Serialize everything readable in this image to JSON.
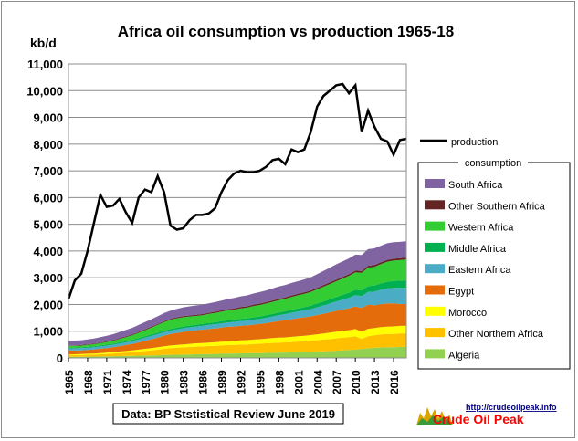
{
  "chart_data": {
    "type": "area",
    "title": "Africa oil consumption vs production 1965-18",
    "ylabel": "kb/d",
    "ylim": [
      0,
      11000
    ],
    "xlim": [
      1965,
      2018
    ],
    "grid": "horizontal",
    "legend_placement": "right",
    "y_ticks": [
      "0",
      "1,000",
      "2,000",
      "3,000",
      "4,000",
      "5,000",
      "6,000",
      "7,000",
      "8,000",
      "9,000",
      "10,000",
      "11,000"
    ],
    "x_ticks": [
      "1965",
      "1968",
      "1971",
      "1974",
      "1977",
      "1980",
      "1983",
      "1986",
      "1989",
      "1992",
      "1995",
      "1998",
      "2001",
      "2004",
      "2007",
      "2010",
      "2013",
      "2016"
    ],
    "years": [
      1965,
      1966,
      1967,
      1968,
      1969,
      1970,
      1971,
      1972,
      1973,
      1974,
      1975,
      1976,
      1977,
      1978,
      1979,
      1980,
      1981,
      1982,
      1983,
      1984,
      1985,
      1986,
      1987,
      1988,
      1989,
      1990,
      1991,
      1992,
      1993,
      1994,
      1995,
      1996,
      1997,
      1998,
      1999,
      2000,
      2001,
      2002,
      2003,
      2004,
      2005,
      2006,
      2007,
      2008,
      2009,
      2010,
      2011,
      2012,
      2013,
      2014,
      2015,
      2016,
      2017,
      2018
    ],
    "production": {
      "name": "production",
      "color": "#000000",
      "values": [
        2200,
        2900,
        3150,
        4000,
        5050,
        6100,
        5650,
        5700,
        5950,
        5450,
        5050,
        6000,
        6300,
        6200,
        6800,
        6200,
        4950,
        4800,
        4850,
        5150,
        5350,
        5350,
        5400,
        5600,
        6200,
        6650,
        6900,
        7000,
        6950,
        6950,
        7000,
        7150,
        7400,
        7450,
        7250,
        7800,
        7700,
        7800,
        8450,
        9400,
        9800,
        10000,
        10200,
        10250,
        9900,
        10200,
        8450,
        9250,
        8650,
        8200,
        8100,
        7600,
        8150,
        8200
      ]
    },
    "consumption_legend_title": "consumption",
    "series": [
      {
        "name": "Algeria",
        "color": "#92d050",
        "values": [
          40,
          42,
          45,
          48,
          50,
          55,
          60,
          65,
          70,
          75,
          80,
          85,
          90,
          95,
          100,
          110,
          115,
          120,
          125,
          130,
          135,
          140,
          145,
          150,
          155,
          160,
          165,
          170,
          175,
          180,
          180,
          185,
          190,
          195,
          200,
          205,
          210,
          215,
          225,
          235,
          245,
          255,
          270,
          285,
          300,
          310,
          330,
          360,
          380,
          390,
          400,
          400,
          410,
          420
        ]
      },
      {
        "name": "Other Northern Africa",
        "color": "#ffc000",
        "values": [
          60,
          62,
          65,
          70,
          75,
          80,
          90,
          100,
          110,
          120,
          130,
          150,
          170,
          190,
          210,
          230,
          250,
          260,
          270,
          280,
          290,
          290,
          300,
          300,
          310,
          320,
          320,
          330,
          330,
          340,
          350,
          360,
          370,
          380,
          380,
          390,
          400,
          410,
          420,
          430,
          440,
          450,
          460,
          470,
          480,
          500,
          380,
          450,
          470,
          490,
          500,
          500,
          510,
          500
        ]
      },
      {
        "name": "Morocco",
        "color": "#ffff00",
        "values": [
          30,
          32,
          35,
          38,
          40,
          45,
          50,
          55,
          60,
          65,
          70,
          75,
          80,
          85,
          90,
          95,
          100,
          105,
          110,
          115,
          120,
          125,
          130,
          135,
          140,
          145,
          150,
          155,
          160,
          165,
          170,
          175,
          180,
          185,
          190,
          195,
          200,
          205,
          210,
          220,
          230,
          240,
          250,
          255,
          260,
          270,
          275,
          280,
          270,
          270,
          270,
          280,
          280,
          285
        ]
      },
      {
        "name": "Egypt",
        "color": "#e46c0a",
        "values": [
          150,
          145,
          140,
          145,
          150,
          160,
          170,
          180,
          200,
          220,
          240,
          270,
          300,
          330,
          360,
          400,
          430,
          450,
          470,
          480,
          490,
          500,
          510,
          520,
          530,
          540,
          540,
          550,
          550,
          560,
          570,
          580,
          600,
          620,
          640,
          660,
          680,
          690,
          700,
          720,
          740,
          760,
          780,
          800,
          820,
          850,
          880,
          900,
          850,
          860,
          870,
          860,
          820,
          800
        ]
      },
      {
        "name": "Eastern Africa",
        "color": "#4bacc6",
        "values": [
          80,
          80,
          82,
          85,
          88,
          90,
          92,
          95,
          100,
          105,
          110,
          115,
          120,
          125,
          130,
          130,
          130,
          135,
          135,
          140,
          140,
          145,
          150,
          155,
          160,
          165,
          170,
          175,
          180,
          185,
          190,
          200,
          210,
          220,
          230,
          240,
          250,
          260,
          270,
          290,
          310,
          330,
          350,
          370,
          390,
          420,
          450,
          480,
          510,
          540,
          560,
          580,
          600,
          620
        ]
      },
      {
        "name": "Middle Africa",
        "color": "#00b050",
        "values": [
          30,
          30,
          30,
          32,
          33,
          35,
          36,
          38,
          40,
          42,
          45,
          48,
          50,
          52,
          55,
          58,
          60,
          62,
          64,
          66,
          68,
          70,
          72,
          75,
          78,
          80,
          82,
          85,
          88,
          90,
          92,
          95,
          98,
          100,
          105,
          110,
          115,
          120,
          130,
          140,
          150,
          160,
          170,
          180,
          190,
          200,
          210,
          220,
          230,
          240,
          250,
          260,
          270,
          280
        ]
      },
      {
        "name": "Western Africa",
        "color": "#33cc33",
        "values": [
          60,
          62,
          65,
          70,
          75,
          85,
          95,
          110,
          130,
          150,
          170,
          200,
          230,
          260,
          290,
          320,
          340,
          350,
          350,
          340,
          330,
          330,
          340,
          350,
          360,
          370,
          380,
          390,
          400,
          420,
          430,
          440,
          450,
          460,
          470,
          480,
          490,
          500,
          510,
          530,
          550,
          570,
          590,
          610,
          630,
          650,
          660,
          690,
          700,
          720,
          750,
          760,
          770,
          780
        ]
      },
      {
        "name": "Other Southern Africa",
        "color": "#632523",
        "values": [
          20,
          20,
          21,
          22,
          23,
          24,
          25,
          26,
          27,
          28,
          30,
          31,
          32,
          33,
          34,
          35,
          36,
          37,
          38,
          39,
          40,
          41,
          42,
          43,
          44,
          45,
          46,
          47,
          48,
          49,
          50,
          51,
          52,
          53,
          54,
          55,
          56,
          57,
          58,
          59,
          60,
          61,
          62,
          63,
          64,
          65,
          66,
          67,
          68,
          69,
          70,
          71,
          72,
          73
        ]
      },
      {
        "name": "South Africa",
        "color": "#8064a2",
        "values": [
          170,
          175,
          180,
          185,
          190,
          200,
          210,
          220,
          230,
          240,
          250,
          260,
          270,
          280,
          290,
          300,
          310,
          320,
          330,
          340,
          350,
          350,
          350,
          360,
          370,
          380,
          390,
          400,
          410,
          420,
          430,
          440,
          450,
          460,
          460,
          470,
          470,
          480,
          490,
          510,
          530,
          550,
          570,
          580,
          590,
          600,
          600,
          620,
          620,
          620,
          620,
          620,
          610,
          610
        ]
      }
    ],
    "legend_order": [
      "South Africa",
      "Other Southern Africa",
      "Western Africa",
      "Middle Africa",
      "Eastern Africa",
      "Egypt",
      "Morocco",
      "Other Northern Africa",
      "Algeria"
    ]
  },
  "source_note": "Data: BP Ststistical Review June 2019",
  "logo": {
    "url_text": "http://crudeoilpeak.info",
    "name": "Crude Oil Peak",
    "color": "#ff0000",
    "url_color": "#000080"
  }
}
